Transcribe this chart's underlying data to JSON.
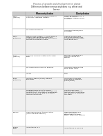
{
  "title1": "Process of growth and development in plants",
  "title2": "Differences between monocotyledons e.g. wheat and\nlucerne",
  "col_headers": [
    "",
    "Monocotyledon",
    "Dicotyledon"
  ],
  "rows": [
    {
      "feature": "Roots\n(Internal)",
      "mono": "Vascular xylem surrounds phloem in\na circular, radiating pattern.",
      "di": "Vascular xylem forms a\ncross. Phloem is\nclustered between arms\nof cross."
    },
    {
      "feature": "",
      "mono": "No cambium tissues",
      "di": "Cambium tissues/cells\nof cortex"
    },
    {
      "feature": "Roots\n(External)",
      "mono": "Fibrous root system. All roots branch\nroughly the same diameter and\nextensively penetrate surface layers.\nDespite not going as deep.",
      "di": "Taproot system with\none large primary root\ngrowing deep and other\nroots grow off it."
    },
    {
      "feature": "Stem\n(Internal)",
      "mono": "Vascular bundles scattered through\nstem",
      "di": "Bundles arranged in a\ncircular, about the\nphloem"
    },
    {
      "feature": "",
      "mono": "No cambium in vascular bundles",
      "di": "Cambium between the\nstem outer layer."
    },
    {
      "feature": "",
      "mono": "Hollow",
      "di": "Solid"
    },
    {
      "feature": "Stem\n(External)",
      "mono": "multiple stems (tillers) without\nbranching.",
      "di": "One main stem with\nbranches at intervals\n(nodes/joints)"
    },
    {
      "feature": "",
      "mono": "Terminal buds do not produce\nelongation of the stem, so stems are\nmostly short. The stem is lengthened\nwhen the terminal bud to produce\nreproductive parts.",
      "di": "The terminal bud\ncontains meristematic\ntissues which undergoes\ncell division to lengthen\nthe stem."
    },
    {
      "feature": "Leaves",
      "mono": "Leaf veins parallel to each other\n(long, thin and parallel)",
      "di": "Leaf veins branch in\nfamiliar pattern\n(reticulate/branched),\nwider, wider and parallel"
    },
    {
      "feature": "Flower\nParts",
      "mono": "In multiples of 3",
      "di": "In multiples of 4/5 or 5"
    }
  ],
  "bg_color": "#ffffff",
  "header_bg": "#cccccc",
  "border_color": "#aaaaaa",
  "text_color": "#111111",
  "title_color": "#555555",
  "subtitle_color": "#222222",
  "row_bgs": [
    "#ffffff",
    "#ffffff",
    "#f0f0f0",
    "#ffffff",
    "#ffffff",
    "#ffffff",
    "#f0f0f0",
    "#f0f0f0",
    "#ffffff",
    "#f0f0f0"
  ]
}
